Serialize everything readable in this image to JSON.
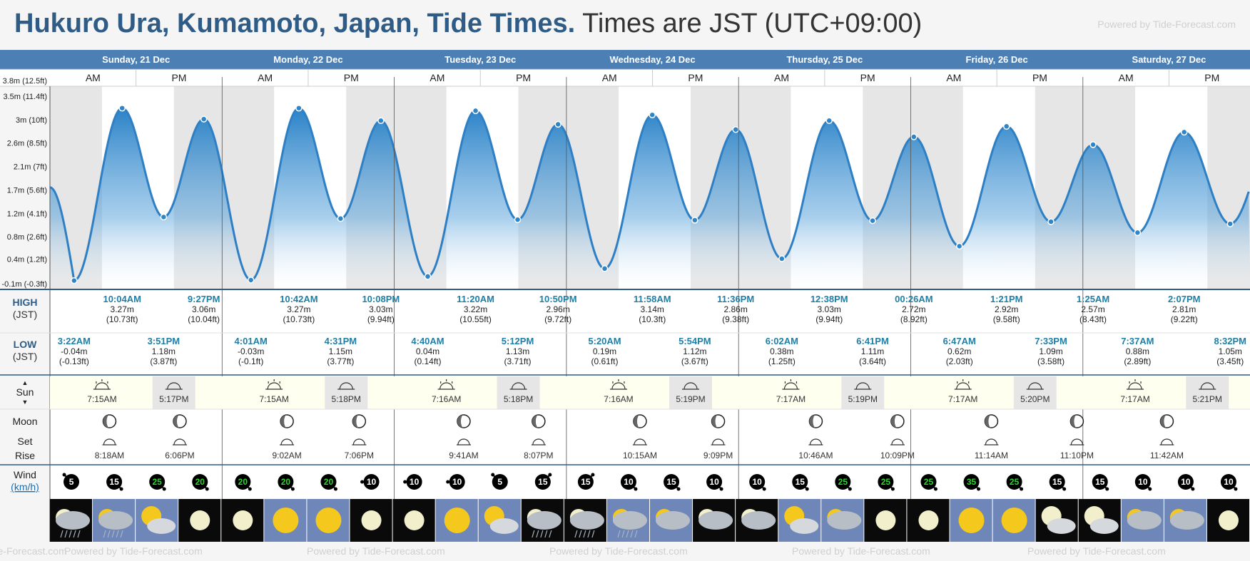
{
  "header": {
    "title": "Hukuro Ura, Kumamoto, Japan, Tide Times.",
    "timezone": "Times are JST (UTC+09:00)",
    "powered": "Powered by Tide-Forecast.com"
  },
  "footer": {
    "powered": "Powered by Tide-Forecast.com"
  },
  "row_labels": {
    "high": "HIGH",
    "low": "LOW",
    "tz": "(JST)",
    "sun": "Sun",
    "moon": "Moon",
    "set": "Set",
    "rise": "Rise",
    "wind": "Wind",
    "wind_unit": "km/h",
    "am": "AM",
    "pm": "PM"
  },
  "colors": {
    "header_bar": "#4c7fb4",
    "tide_line": "#2e7fc4",
    "marker": "#2e86c8",
    "time_text": "#1f7fa6",
    "sun_row": "#fffff0",
    "night": "#e6e6e6"
  },
  "chart_data": {
    "type": "area",
    "title": "Hukuro Ura, Kumamoto, Japan, Tide Times.",
    "xlabel": "",
    "ylabel": "",
    "y_unit": "m",
    "ylim": [
      -0.1,
      3.8
    ],
    "y_ticks": [
      {
        "v": 3.8,
        "label": "3.8m (12.5ft)"
      },
      {
        "v": 3.5,
        "label": "3.5m (11.4ft)"
      },
      {
        "v": 3.05,
        "label": "3m (10ft)"
      },
      {
        "v": 2.6,
        "label": "2.6m (8.5ft)"
      },
      {
        "v": 2.15,
        "label": "2.1m (7ft)"
      },
      {
        "v": 1.7,
        "label": "1.7m (5.6ft)"
      },
      {
        "v": 1.25,
        "label": "1.2m (4.1ft)"
      },
      {
        "v": 0.8,
        "label": "0.8m (2.6ft)"
      },
      {
        "v": 0.37,
        "label": "0.4m (1.2ft)"
      },
      {
        "v": -0.1,
        "label": "-0.1m (-0.3ft)"
      }
    ],
    "days": [
      "Sunday, 21 Dec",
      "Monday, 22 Dec",
      "Tuesday, 23 Dec",
      "Wednesday, 24 Dec",
      "Thursday, 25 Dec",
      "Friday, 26 Dec",
      "Saturday, 27 Dec"
    ],
    "start_height": 1.75,
    "series": [
      {
        "name": "HIGH",
        "events": [
          {
            "day": 0,
            "time": "10:04AM",
            "h": 3.27,
            "m": "3.27m",
            "ft": "(10.73ft)"
          },
          {
            "day": 0,
            "time": "9:27PM",
            "h": 3.06,
            "m": "3.06m",
            "ft": "(10.04ft)"
          },
          {
            "day": 1,
            "time": "10:42AM",
            "h": 3.27,
            "m": "3.27m",
            "ft": "(10.73ft)"
          },
          {
            "day": 1,
            "time": "10:08PM",
            "h": 3.03,
            "m": "3.03m",
            "ft": "(9.94ft)"
          },
          {
            "day": 2,
            "time": "11:20AM",
            "h": 3.22,
            "m": "3.22m",
            "ft": "(10.55ft)"
          },
          {
            "day": 2,
            "time": "10:50PM",
            "h": 2.96,
            "m": "2.96m",
            "ft": "(9.72ft)"
          },
          {
            "day": 3,
            "time": "11:58AM",
            "h": 3.14,
            "m": "3.14m",
            "ft": "(10.3ft)"
          },
          {
            "day": 3,
            "time": "11:36PM",
            "h": 2.86,
            "m": "2.86m",
            "ft": "(9.38ft)"
          },
          {
            "day": 4,
            "time": "12:38PM",
            "h": 3.03,
            "m": "3.03m",
            "ft": "(9.94ft)"
          },
          {
            "day": 5,
            "time": "00:26AM",
            "h": 2.72,
            "m": "2.72m",
            "ft": "(8.92ft)"
          },
          {
            "day": 5,
            "time": "1:21PM",
            "h": 2.92,
            "m": "2.92m",
            "ft": "(9.58ft)"
          },
          {
            "day": 6,
            "time": "1:25AM",
            "h": 2.57,
            "m": "2.57m",
            "ft": "(8.43ft)"
          },
          {
            "day": 6,
            "time": "2:07PM",
            "h": 2.81,
            "m": "2.81m",
            "ft": "(9.22ft)"
          }
        ]
      },
      {
        "name": "LOW",
        "events": [
          {
            "day": 0,
            "time": "3:22AM",
            "h": -0.04,
            "m": "-0.04m",
            "ft": "(-0.13ft)"
          },
          {
            "day": 0,
            "time": "3:51PM",
            "h": 1.18,
            "m": "1.18m",
            "ft": "(3.87ft)"
          },
          {
            "day": 1,
            "time": "4:01AM",
            "h": -0.03,
            "m": "-0.03m",
            "ft": "(-0.1ft)"
          },
          {
            "day": 1,
            "time": "4:31PM",
            "h": 1.15,
            "m": "1.15m",
            "ft": "(3.77ft)"
          },
          {
            "day": 2,
            "time": "4:40AM",
            "h": 0.04,
            "m": "0.04m",
            "ft": "(0.14ft)"
          },
          {
            "day": 2,
            "time": "5:12PM",
            "h": 1.13,
            "m": "1.13m",
            "ft": "(3.71ft)"
          },
          {
            "day": 3,
            "time": "5:20AM",
            "h": 0.19,
            "m": "0.19m",
            "ft": "(0.61ft)"
          },
          {
            "day": 3,
            "time": "5:54PM",
            "h": 1.12,
            "m": "1.12m",
            "ft": "(3.67ft)"
          },
          {
            "day": 4,
            "time": "6:02AM",
            "h": 0.38,
            "m": "0.38m",
            "ft": "(1.25ft)"
          },
          {
            "day": 4,
            "time": "6:41PM",
            "h": 1.11,
            "m": "1.11m",
            "ft": "(3.64ft)"
          },
          {
            "day": 5,
            "time": "6:47AM",
            "h": 0.62,
            "m": "0.62m",
            "ft": "(2.03ft)"
          },
          {
            "day": 5,
            "time": "7:33PM",
            "h": 1.09,
            "m": "1.09m",
            "ft": "(3.58ft)"
          },
          {
            "day": 6,
            "time": "7:37AM",
            "h": 0.88,
            "m": "0.88m",
            "ft": "(2.89ft)"
          },
          {
            "day": 6,
            "time": "8:32PM",
            "h": 1.05,
            "m": "1.05m",
            "ft": "(3.45ft)"
          }
        ]
      }
    ],
    "sun": [
      {
        "day": 0,
        "rise": "7:15AM",
        "set": "5:17PM"
      },
      {
        "day": 1,
        "rise": "7:15AM",
        "set": "5:18PM"
      },
      {
        "day": 2,
        "rise": "7:16AM",
        "set": "5:18PM"
      },
      {
        "day": 3,
        "rise": "7:16AM",
        "set": "5:19PM"
      },
      {
        "day": 4,
        "rise": "7:17AM",
        "set": "5:19PM"
      },
      {
        "day": 5,
        "rise": "7:17AM",
        "set": "5:20PM"
      },
      {
        "day": 6,
        "rise": "7:17AM",
        "set": "5:21PM"
      }
    ],
    "moon": [
      {
        "day": 0,
        "set": "8:18AM",
        "rise": "6:06PM"
      },
      {
        "day": 1,
        "set": "9:02AM",
        "rise": "7:06PM"
      },
      {
        "day": 2,
        "set": "9:41AM",
        "rise": "8:07PM"
      },
      {
        "day": 3,
        "set": "10:15AM",
        "rise": "9:09PM"
      },
      {
        "day": 4,
        "set": "10:46AM",
        "rise": "10:09PM"
      },
      {
        "day": 5,
        "set": "11:14AM",
        "rise": "11:10PM"
      },
      {
        "day": 6,
        "set": "11:42AM",
        "rise": ""
      }
    ],
    "wind": [
      5,
      15,
      25,
      20,
      20,
      20,
      20,
      10,
      10,
      10,
      5,
      15,
      15,
      10,
      15,
      10,
      10,
      15,
      25,
      25,
      25,
      35,
      25,
      15,
      15,
      10,
      10,
      10
    ],
    "wind_dirs": [
      "ne",
      "se",
      "se",
      "se",
      "se",
      "se",
      "se",
      "w",
      "w",
      "w",
      "ne",
      "nw",
      "nw",
      "se",
      "se",
      "se",
      "se",
      "se",
      "se",
      "se",
      "se",
      "se",
      "se",
      "se",
      "se",
      "se",
      "se",
      "se"
    ],
    "weather": [
      "night-rain",
      "day-rain",
      "day-partly-cloudy",
      "night-clear",
      "night-clear",
      "day-sunny",
      "day-sunny",
      "night-clear",
      "night-clear",
      "day-sunny",
      "day-partly-cloudy",
      "night-rain",
      "night-rain",
      "day-rain",
      "day-cloudy",
      "night-cloudy",
      "night-cloudy",
      "day-partly-cloudy",
      "day-cloudy",
      "night-clear",
      "night-clear",
      "day-sunny",
      "day-sunny",
      "night-partly-cloudy",
      "night-partly-cloudy",
      "day-cloudy",
      "day-cloudy",
      "night-clear"
    ]
  }
}
